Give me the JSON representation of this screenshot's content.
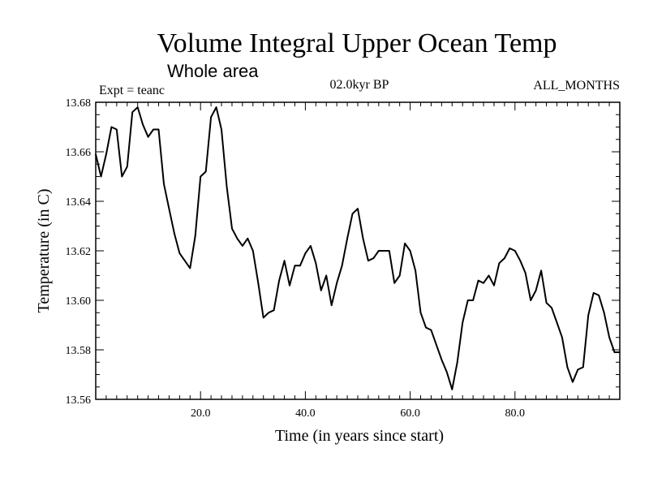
{
  "chart_data": {
    "type": "line",
    "title": "Volume Integral Upper Ocean Temp",
    "subtitle": "Whole area",
    "experiment_label": "Expt = teanc",
    "period_label": "02.0kyr BP",
    "months_label": "ALL_MONTHS",
    "xlabel": "Time (in years since start)",
    "ylabel": "Temperature (in C)",
    "xlim": [
      0,
      100
    ],
    "ylim": [
      13.56,
      13.68
    ],
    "xticks": [
      20,
      40,
      60,
      80
    ],
    "xtick_labels": [
      "20.0",
      "40.0",
      "60.0",
      "80.0"
    ],
    "yticks": [
      13.56,
      13.58,
      13.6,
      13.62,
      13.64,
      13.66,
      13.68
    ],
    "ytick_labels": [
      "13.56",
      "13.58",
      "13.60",
      "13.62",
      "13.64",
      "13.66",
      "13.68"
    ],
    "grid": false,
    "series": [
      {
        "name": "temperature",
        "color": "#000000",
        "x": [
          0,
          1,
          2,
          3,
          4,
          5,
          6,
          7,
          8,
          9,
          10,
          11,
          12,
          13,
          14,
          15,
          16,
          17,
          18,
          19,
          20,
          21,
          22,
          23,
          24,
          25,
          26,
          27,
          28,
          29,
          30,
          31,
          32,
          33,
          34,
          35,
          36,
          37,
          38,
          39,
          40,
          41,
          42,
          43,
          44,
          45,
          46,
          47,
          48,
          49,
          50,
          51,
          52,
          53,
          54,
          55,
          56,
          57,
          58,
          59,
          60,
          61,
          62,
          63,
          64,
          65,
          66,
          67,
          68,
          69,
          70,
          71,
          72,
          73,
          74,
          75,
          76,
          77,
          78,
          79,
          80,
          81,
          82,
          83,
          84,
          85,
          86,
          87,
          88,
          89,
          90,
          91,
          92,
          93,
          94,
          95,
          96,
          97,
          98,
          99,
          100
        ],
        "values": [
          13.659,
          13.65,
          13.659,
          13.67,
          13.669,
          13.65,
          13.654,
          13.676,
          13.678,
          13.671,
          13.666,
          13.669,
          13.669,
          13.647,
          13.637,
          13.627,
          13.619,
          13.616,
          13.613,
          13.626,
          13.65,
          13.652,
          13.674,
          13.678,
          13.669,
          13.646,
          13.629,
          13.625,
          13.622,
          13.625,
          13.62,
          13.607,
          13.593,
          13.595,
          13.596,
          13.608,
          13.616,
          13.606,
          13.614,
          13.614,
          13.619,
          13.622,
          13.615,
          13.604,
          13.61,
          13.598,
          13.607,
          13.614,
          13.625,
          13.635,
          13.637,
          13.625,
          13.616,
          13.617,
          13.62,
          13.62,
          13.62,
          13.607,
          13.61,
          13.623,
          13.62,
          13.612,
          13.595,
          13.589,
          13.588,
          13.582,
          13.576,
          13.571,
          13.564,
          13.575,
          13.591,
          13.6,
          13.6,
          13.608,
          13.607,
          13.61,
          13.606,
          13.615,
          13.617,
          13.621,
          13.62,
          13.616,
          13.611,
          13.6,
          13.604,
          13.612,
          13.599,
          13.597,
          13.591,
          13.585,
          13.573,
          13.567,
          13.572,
          13.573,
          13.594,
          13.603,
          13.602,
          13.595,
          13.585,
          13.579,
          13.579
        ]
      }
    ]
  }
}
